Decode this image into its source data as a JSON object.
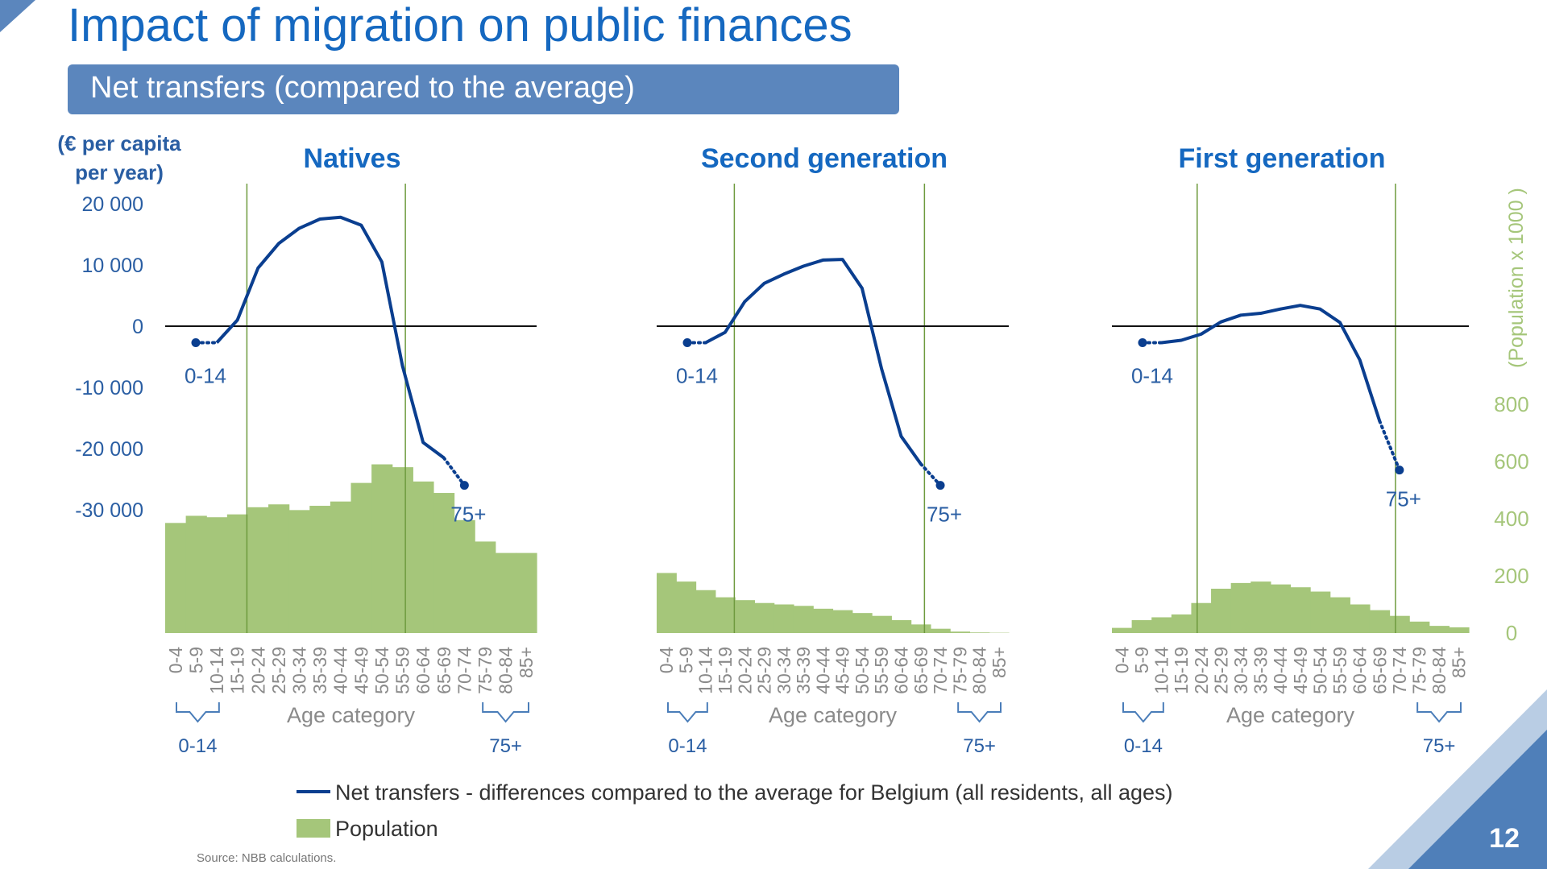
{
  "slide": {
    "title": "Impact of migration on public finances",
    "subtitle": "Net transfers (compared to the average)",
    "page_number": "12",
    "source": "Source: NBB calculations.",
    "accent_color": "#1568c0",
    "banner_color": "#5b86bd",
    "line_color": "#0a3e8f",
    "bar_color": "#a5c67a",
    "secondary_axis_color": "#a5c67a"
  },
  "chart_data": {
    "type": "bar+line",
    "left_axis": {
      "label_line1": "(€ per capita",
      "label_line2": "per year)",
      "ticks": [
        "20 000",
        "10 000",
        "0",
        "-10 000",
        "-20 000",
        "-30 000"
      ],
      "tick_values": [
        20000,
        10000,
        0,
        -10000,
        -20000,
        -30000
      ]
    },
    "right_axis": {
      "label": "(Population x 1000 )",
      "ticks": [
        "800",
        "600",
        "400",
        "200",
        "0"
      ],
      "tick_values": [
        800,
        600,
        400,
        200,
        0
      ]
    },
    "xlabel": "Age category",
    "categories": [
      "0-4",
      "5-9",
      "10-14",
      "15-19",
      "20-24",
      "25-29",
      "30-34",
      "35-39",
      "40-44",
      "45-49",
      "50-54",
      "55-59",
      "60-64",
      "65-69",
      "70-74",
      "75-79",
      "80-84",
      "85+"
    ],
    "group_labels": {
      "left": "0-14",
      "right": "75+"
    },
    "legend": {
      "line": "Net transfers - differences compared to the average for Belgium (all residents, all ages)",
      "bars": "Population"
    },
    "panels": [
      {
        "title": "Natives",
        "population": [
          385,
          410,
          405,
          415,
          440,
          450,
          430,
          445,
          460,
          525,
          590,
          580,
          530,
          490,
          395,
          320,
          280,
          280
        ],
        "line_start": {
          "label": "0-14",
          "value": -2700
        },
        "line_end": {
          "label": "75+",
          "value": -26000
        },
        "net_transfers": {
          "x": [
            2.5,
            3.5,
            4.5,
            5.5,
            6.5,
            7.5,
            8.5,
            9.5,
            10.5,
            11.5,
            12.5,
            13.5,
            14.5
          ],
          "y": [
            -2700,
            1000,
            9500,
            13500,
            16000,
            17500,
            17800,
            16500,
            10500,
            -6500,
            -19000,
            -21500,
            -26000
          ]
        },
        "dotted_segments": [
          [
            0,
            2.5
          ],
          [
            13.5,
            14.5
          ]
        ],
        "vlines": [
          3.96,
          11.64
        ]
      },
      {
        "title": "Second generation",
        "population": [
          210,
          180,
          150,
          125,
          115,
          105,
          100,
          95,
          85,
          80,
          70,
          60,
          45,
          30,
          15,
          5,
          2,
          1
        ],
        "line_start": {
          "label": "0-14",
          "value": -2700
        },
        "line_end": {
          "label": "75+",
          "value": -26000
        },
        "net_transfers": {
          "x": [
            2.5,
            3.5,
            4.5,
            5.5,
            6.5,
            7.5,
            8.5,
            9.5,
            10.5,
            11.5,
            12.5,
            13.5,
            14.5
          ],
          "y": [
            -2700,
            -1000,
            4000,
            7000,
            8500,
            9800,
            10800,
            10900,
            6200,
            -7000,
            -18000,
            -22500,
            -26000
          ]
        },
        "dotted_segments": [
          [
            0,
            2.5
          ],
          [
            13.5,
            14.5
          ]
        ],
        "vlines": [
          3.97,
          13.69
        ]
      },
      {
        "title": "First generation",
        "population": [
          18,
          45,
          55,
          65,
          105,
          155,
          175,
          180,
          170,
          160,
          145,
          125,
          100,
          80,
          60,
          40,
          25,
          20
        ],
        "line_start": {
          "label": "0-14",
          "value": -2700
        },
        "line_end": {
          "label": "75+",
          "value": -23500
        },
        "net_transfers": {
          "x": [
            2.5,
            3.5,
            4.5,
            5.5,
            6.5,
            7.5,
            8.5,
            9.5,
            10.5,
            11.5,
            12.5,
            13.5,
            14.5
          ],
          "y": [
            -2700,
            -2300,
            -1300,
            700,
            1800,
            2100,
            2800,
            3400,
            2800,
            600,
            -5500,
            -15500,
            -23500
          ]
        },
        "dotted_segments": [
          [
            0,
            2.5
          ],
          [
            13.5,
            14.5
          ]
        ],
        "vlines": [
          4.3,
          14.3
        ]
      }
    ]
  }
}
